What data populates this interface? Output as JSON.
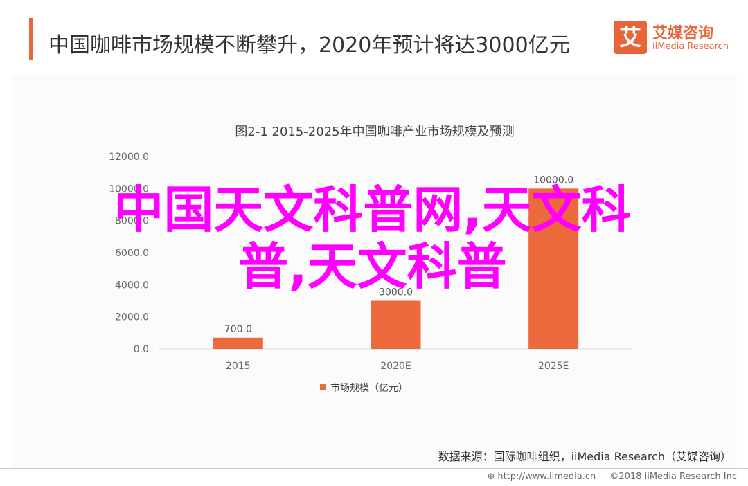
{
  "header": {
    "title": "中国咖啡市场规模不断攀升，2020年预计将达3000亿元"
  },
  "logo": {
    "mark": "艾",
    "name_cn": "艾媒咨询",
    "name_en": "iiMedia Research"
  },
  "chart_data": {
    "type": "bar",
    "title": "图2-1 2015-2025年中国咖啡产业市场规模及预测",
    "categories": [
      "2015",
      "2020E",
      "2025E"
    ],
    "series": [
      {
        "name": "市场规模（亿元）",
        "values": [
          700.0,
          3000.0,
          10000.0
        ],
        "labels": [
          "700.0",
          "3000.0",
          "10000.0"
        ]
      }
    ],
    "ylim": [
      0,
      12000
    ],
    "yticks": [
      "0.0",
      "2000.0",
      "4000.0",
      "6000.0",
      "8000.0",
      "10000.0",
      "12000.0"
    ],
    "grid": false,
    "legend": "bottom-center",
    "bar_color": "#ed6a3c"
  },
  "source": "数据来源：国际咖啡组织，iiMedia Research（艾媒咨询）",
  "footer": {
    "url": "http://www.iimedia.cn",
    "copyright": "©2018  iiMedia Research  Inc"
  },
  "watermark": {
    "line1": "中国天文科普网,天文科",
    "line2": "普,天文科普"
  }
}
